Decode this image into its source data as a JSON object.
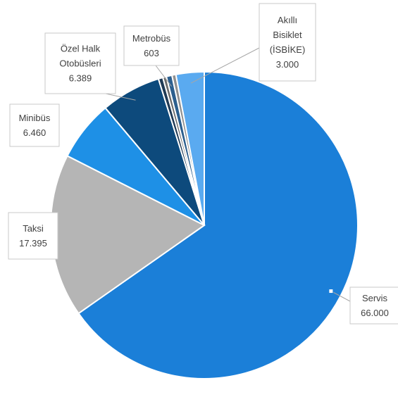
{
  "chart_data": {
    "type": "pie",
    "title": "",
    "slices": [
      {
        "label": "Servis",
        "value_label": "66.000",
        "value": 66000,
        "color": "#1b7fd8"
      },
      {
        "label": "Taksi",
        "value_label": "17.395",
        "value": 17395,
        "color": "#b5b5b5"
      },
      {
        "label": "Minibüs",
        "value_label": "6.460",
        "value": 6460,
        "color": "#1e90e6"
      },
      {
        "label": "Özel Halk Otobüsleri",
        "value_label": "6.389",
        "value": 6389,
        "color": "#0d4a7c"
      },
      {
        "label": "",
        "value_label": "",
        "value": 480,
        "color": "#1f3a55"
      },
      {
        "label": "",
        "value_label": "",
        "value": 380,
        "color": "#6b6b6b"
      },
      {
        "label": "Metrobüs",
        "value_label": "603",
        "value": 603,
        "color": "#2c5f8e"
      },
      {
        "label": "",
        "value_label": "",
        "value": 420,
        "color": "#909090"
      },
      {
        "label": "Akıllı Bisiklet (İSBİKE)",
        "value_label": "3.000",
        "value": 3000,
        "color": "#5aaaf0"
      }
    ],
    "labels": [
      {
        "slice": 0,
        "lines": [
          "Servis",
          "66.000"
        ]
      },
      {
        "slice": 1,
        "lines": [
          "Taksi",
          "17.395"
        ]
      },
      {
        "slice": 2,
        "lines": [
          "Minibüs",
          "6.460"
        ]
      },
      {
        "slice": 3,
        "lines": [
          "Özel Halk",
          "Otobüsleri",
          "6.389"
        ]
      },
      {
        "slice": 6,
        "lines": [
          "Metrobüs",
          "603"
        ]
      },
      {
        "slice": 8,
        "lines": [
          "Akıllı",
          "Bisiklet",
          "(İSBİKE)",
          "3.000"
        ]
      }
    ],
    "legend": "none"
  }
}
